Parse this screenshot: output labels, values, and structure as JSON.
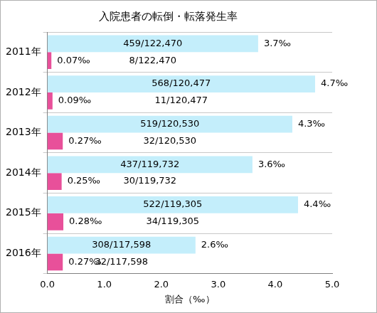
{
  "chart_data": {
    "type": "bar",
    "title": "入院患者の転倒・転落発生率",
    "orientation": "horizontal",
    "categories": [
      "2011年",
      "2012年",
      "2013年",
      "2014年",
      "2015年",
      "2016年"
    ],
    "series": [
      {
        "color": "#c4eefb",
        "values": [
          3.7,
          4.7,
          4.3,
          3.6,
          4.4,
          2.6
        ],
        "value_labels": [
          "3.7‰",
          "4.7‰",
          "4.3‰",
          "3.6‰",
          "4.4‰",
          "2.6‰"
        ],
        "fractions": [
          "459/122,470",
          "568/120,477",
          "519/120,530",
          "437/119,732",
          "522/119,305",
          "308/117,598"
        ]
      },
      {
        "color": "#e8509a",
        "values": [
          0.07,
          0.09,
          0.27,
          0.25,
          0.28,
          0.27
        ],
        "value_labels": [
          "0.07‰",
          "0.09‰",
          "0.27‰",
          "0.25‰",
          "0.28‰",
          "0.27‰"
        ],
        "fractions": [
          "8/122,470",
          "11/120,477",
          "32/120,530",
          "30/119,732",
          "34/119,305",
          "32/117,598"
        ]
      }
    ],
    "x_label": "割合（‰）",
    "xlim": [
      0,
      5
    ],
    "xticks": [
      {
        "value": 0,
        "label": "0.0"
      },
      {
        "value": 1,
        "label": "1.0"
      },
      {
        "value": 2,
        "label": "2.0"
      },
      {
        "value": 3,
        "label": "3.0"
      },
      {
        "value": 4,
        "label": "4.0"
      },
      {
        "value": 5,
        "label": "5.0"
      }
    ],
    "grid": true,
    "data_labels": true
  }
}
